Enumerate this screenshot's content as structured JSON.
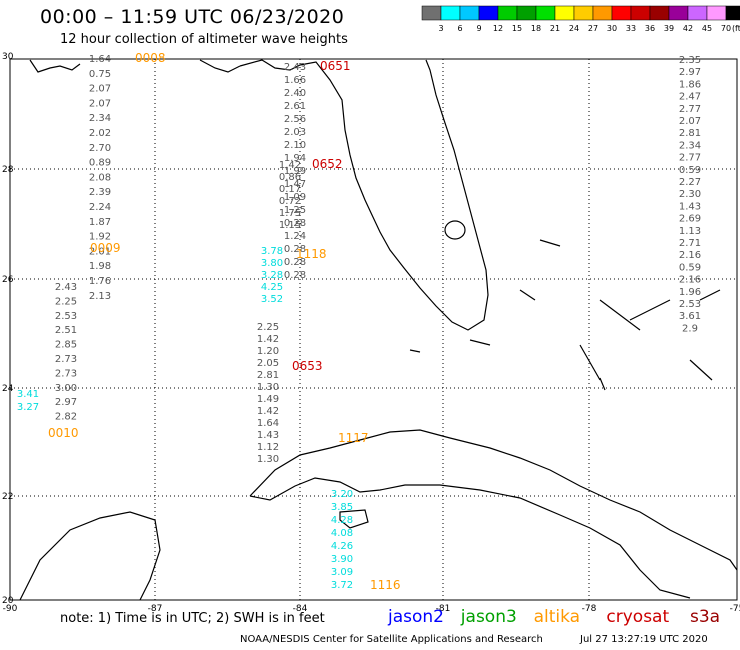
{
  "header": {
    "title": "00:00 – 11:59 UTC 06/23/2020",
    "subtitle": "12 hour collection of altimeter wave heights"
  },
  "legend": {
    "unit": "(ft)",
    "ticks": [
      "3",
      "6",
      "9",
      "12",
      "15",
      "18",
      "21",
      "24",
      "27",
      "30",
      "33",
      "36",
      "39",
      "42",
      "45",
      "70"
    ],
    "colors": [
      "#707070",
      "#00ffff",
      "#00c8ff",
      "#0000ff",
      "#00cc00",
      "#00a000",
      "#00e000",
      "#ffff00",
      "#ffcc00",
      "#ff9900",
      "#ff0000",
      "#cc0000",
      "#990000",
      "#990099",
      "#cc66ff",
      "#ff99ff",
      "#000000"
    ]
  },
  "axes": {
    "lat_labels": [
      "30",
      "28",
      "26",
      "24",
      "22",
      "20"
    ],
    "lon_labels": [
      "-90",
      "-87",
      "-84",
      "-81",
      "-78",
      "-75"
    ]
  },
  "tracks": [
    {
      "pass": "0008",
      "sat": "altika",
      "color": "#ff9900",
      "values": [
        "1.64",
        "0.75",
        "2.07",
        "2.07",
        "2.34",
        "2.02",
        "2.70",
        "0.89",
        "2.08",
        "2.39",
        "2.24",
        "1.87",
        "1.92",
        "2.01",
        "1.98",
        "1.76",
        "2.13"
      ]
    },
    {
      "pass": "0009",
      "sat": "altika",
      "color": "#ff9900",
      "values": [
        "2.43",
        "2.25",
        "2.53",
        "2.51",
        "2.85",
        "2.73",
        "2.73",
        "3.00",
        "2.97",
        "2.82"
      ]
    },
    {
      "pass": "0010",
      "sat": "altika",
      "color": "#ff9900",
      "values": [
        "3.41",
        "3.27"
      ]
    },
    {
      "pass": "0651",
      "sat": "cryosat",
      "color": "#cc0000",
      "values": [
        "2.43",
        "1.66",
        "2.40",
        "2.61",
        "2.56",
        "2.03",
        "2.10",
        "1.94",
        "1.99",
        "1.47",
        "1.09",
        "1.25",
        "0.28",
        "1.24",
        "0.28",
        "0.28",
        "0.28"
      ]
    },
    {
      "pass": "0652",
      "sat": "cryosat",
      "color": "#cc0000",
      "values": [
        "1.42",
        "0.86",
        "0.17",
        "0.72",
        "1.75",
        "1.15"
      ]
    },
    {
      "pass": "0653",
      "sat": "cryosat",
      "color": "#cc0000",
      "values": [
        "2.25",
        "1.42",
        "1.20",
        "2.05",
        "2.81",
        "1.30",
        "1.49",
        "1.42",
        "1.64",
        "1.43",
        "1.12",
        "1.30"
      ]
    },
    {
      "pass": "1116",
      "sat": "altika",
      "color": "#ff9900",
      "values": [
        "3.20",
        "3.85",
        "4.28",
        "4.08",
        "4.26",
        "3.90",
        "3.09",
        "3.72"
      ]
    },
    {
      "pass": "1117",
      "sat": "altika",
      "color": "#ff9900",
      "values": []
    },
    {
      "pass": "1118",
      "sat": "altika",
      "color": "#ff9900",
      "values": [
        "3.78",
        "3.80",
        "3.28",
        "4.25",
        "3.52"
      ]
    },
    {
      "pass": "",
      "sat": "right",
      "color": "#707070",
      "values": [
        "2.35",
        "2.97",
        "1.86",
        "2.47",
        "2.77",
        "2.07",
        "2.81",
        "2.34",
        "2.77",
        "0.59",
        "2.27",
        "2.30",
        "1.43",
        "2.69",
        "1.13",
        "2.71",
        "2.16",
        "0.59",
        "2.16",
        "1.96",
        "2.53",
        "3.61",
        "2.9"
      ]
    }
  ],
  "footer": {
    "note": "note: 1) Time is in UTC; 2) SWH is in feet",
    "satellites": [
      {
        "name": "jason2",
        "color": "#0000ff"
      },
      {
        "name": "jason3",
        "color": "#00a000"
      },
      {
        "name": "altika",
        "color": "#ff9900"
      },
      {
        "name": "cryosat",
        "color": "#cc0000"
      },
      {
        "name": "s3a",
        "color": "#990000"
      }
    ],
    "credit": "NOAA/NESDIS Center for Satellite Applications and Research",
    "timestamp": "Jul 27 13:27:19 UTC 2020"
  }
}
